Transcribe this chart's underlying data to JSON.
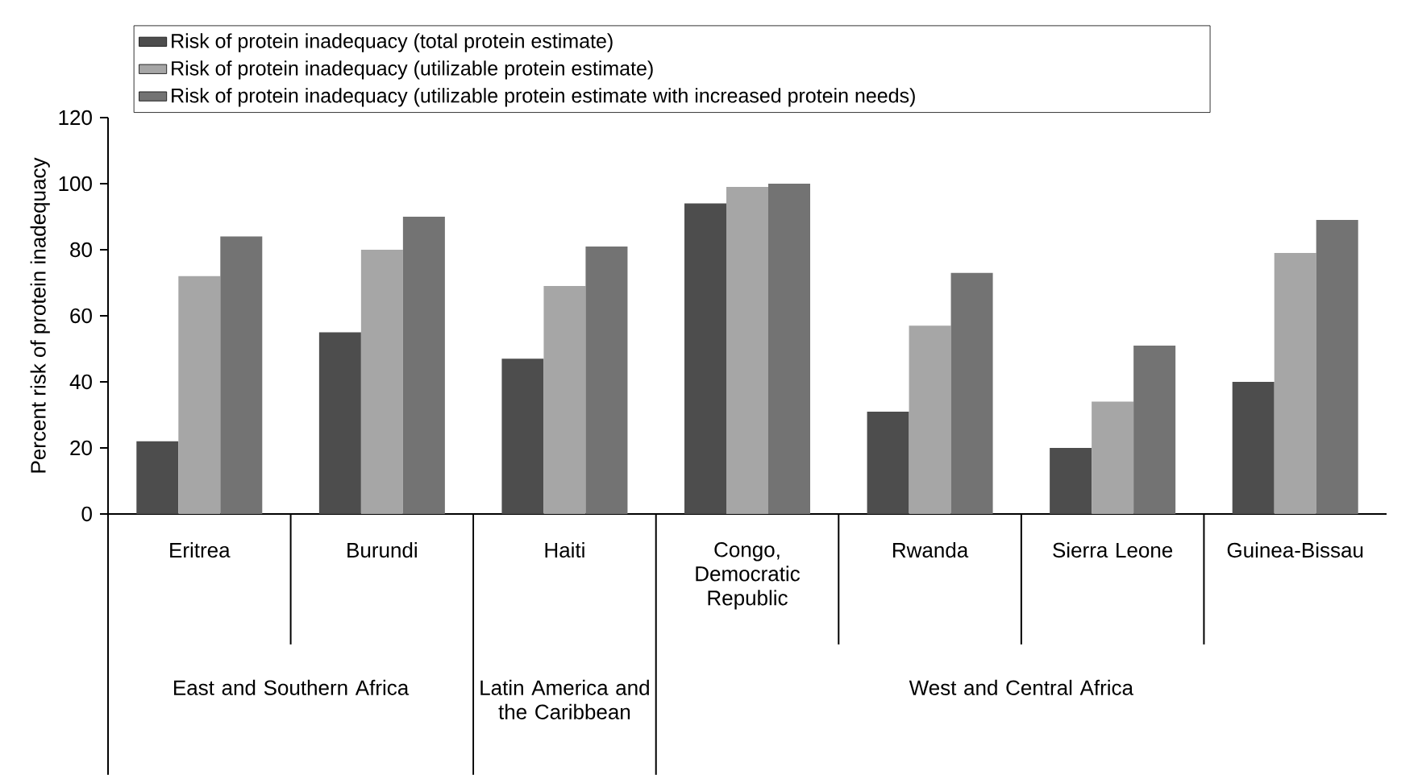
{
  "chart_data": {
    "type": "bar",
    "ylabel": "Percent risk of protein inadequacy",
    "categories": [
      "Eritrea",
      "Burundi",
      "Haiti",
      "Congo, Democratic Republic",
      "Rwanda",
      "Sierra Leone",
      "Guinea-Bissau"
    ],
    "series": [
      {
        "name": "Risk of protein inadequacy (total protein estimate)",
        "color": "#4d4d4d",
        "values": [
          22,
          55,
          47,
          94,
          31,
          20,
          40
        ]
      },
      {
        "name": "Risk of protein inadequacy (utilizable protein estimate)",
        "color": "#a6a6a6",
        "values": [
          72,
          80,
          69,
          99,
          57,
          34,
          79
        ]
      },
      {
        "name": "Risk of protein inadequacy (utilizable protein estimate with increased protein needs)",
        "color": "#737373",
        "values": [
          84,
          90,
          81,
          100,
          73,
          51,
          89
        ]
      }
    ],
    "annotations": [
      "East and Southern Africa",
      "Latin America and the Caribbean",
      "West and Central Africa"
    ],
    "ylim": [
      0,
      120
    ],
    "yticks": [
      0,
      20,
      40,
      60,
      80,
      100,
      120
    ],
    "legend": "top left",
    "grid": false
  }
}
